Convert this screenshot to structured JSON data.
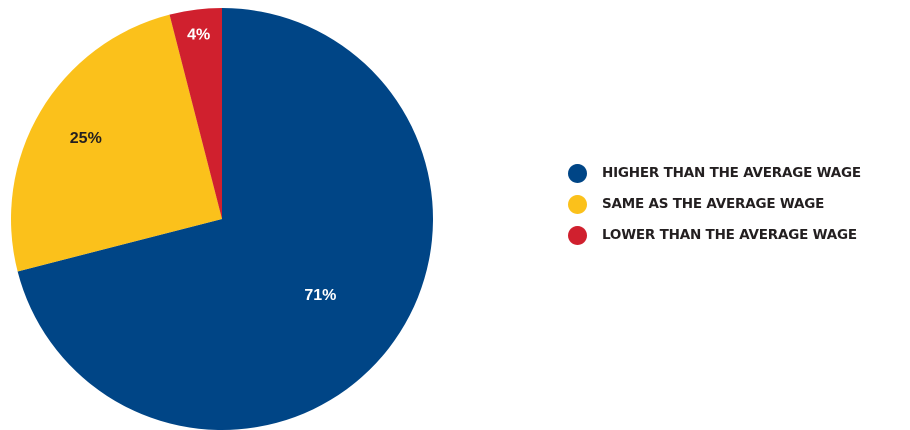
{
  "chart_data": {
    "type": "pie",
    "title": "",
    "legend_position": "right",
    "slices": [
      {
        "label": "HIGHER THAN THE AVERAGE WAGE",
        "value": 71,
        "value_label": "71%",
        "color": "#004586",
        "label_color": "#ffffff"
      },
      {
        "label": "SAME AS THE AVERAGE WAGE",
        "value": 25,
        "value_label": "25%",
        "color": "#fbc11b",
        "label_color": "#231f20"
      },
      {
        "label": "LOWER THAN THE AVERAGE WAGE",
        "value": 4,
        "value_label": "4%",
        "color": "#d0202e",
        "label_color": "#ffffff"
      }
    ]
  }
}
